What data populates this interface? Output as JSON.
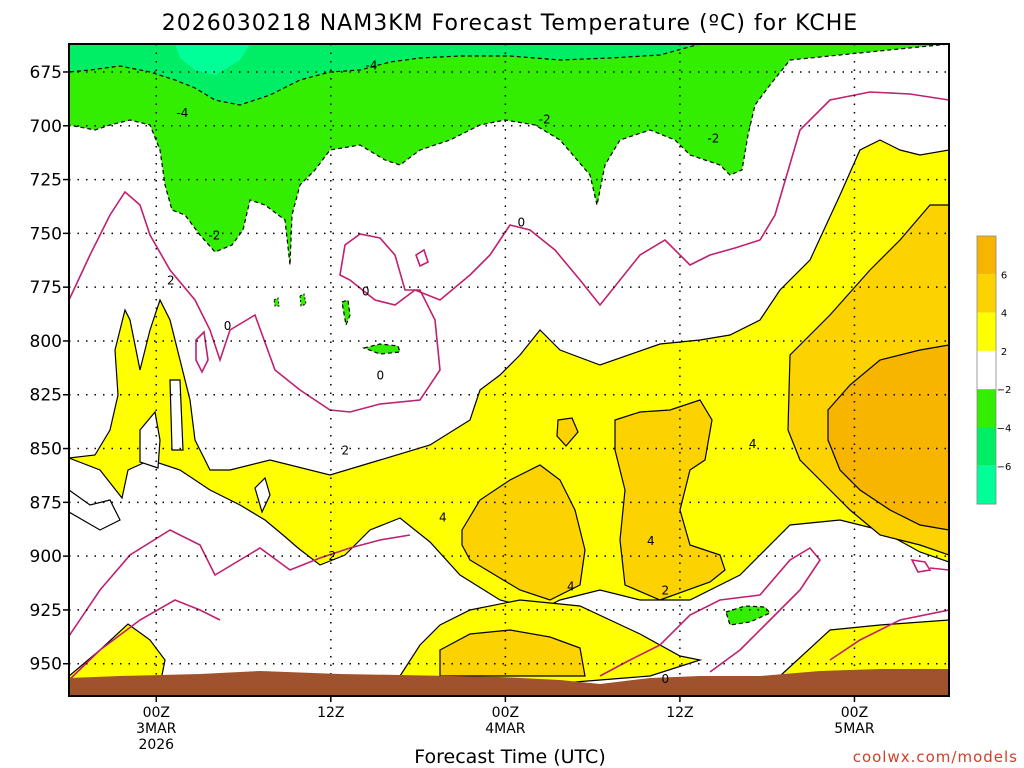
{
  "chart_data": {
    "type": "contour",
    "title": "2026030218 NAM3KM Forecast Temperature (ºC) for KCHE",
    "xlabel": "Forecast Time (UTC)",
    "ylabel": "",
    "y_scale": "pressure (hPa), increasing downward",
    "ylim": [
      662,
      965
    ],
    "y_ticks": [
      675,
      700,
      725,
      750,
      775,
      800,
      825,
      850,
      875,
      900,
      925,
      950
    ],
    "x_ticks": [
      {
        "hour": 0,
        "label": [
          "00Z",
          "3MAR",
          "2026"
        ]
      },
      {
        "hour": 12,
        "label": [
          "12Z"
        ]
      },
      {
        "hour": 24,
        "label": [
          "00Z",
          "4MAR"
        ]
      },
      {
        "hour": 36,
        "label": [
          "12Z"
        ]
      },
      {
        "hour": 48,
        "label": [
          "00Z",
          "5MAR"
        ]
      }
    ],
    "xlim": [
      -6,
      54.5
    ],
    "grid": true,
    "colorbar": {
      "labels": [
        "6",
        "4",
        "2",
        "−2",
        "−4",
        "−6"
      ],
      "bins": [
        {
          "range": [
            6,
            8
          ],
          "color": "#f7b500"
        },
        {
          "range": [
            4,
            6
          ],
          "color": "#fcd200"
        },
        {
          "range": [
            2,
            4
          ],
          "color": "#ffff00"
        },
        {
          "range": [
            -2,
            2
          ],
          "color": "#ffffff"
        },
        {
          "range": [
            -4,
            -2
          ],
          "color": "#33ee00"
        },
        {
          "range": [
            -6,
            -4
          ],
          "color": "#00ee66"
        },
        {
          "range": [
            -8,
            -6
          ],
          "color": "#00ff99"
        }
      ]
    },
    "contour_labels": [
      {
        "text": "-4",
        "hour": 1.8,
        "p": 694
      },
      {
        "text": "-4",
        "hour": 14.8,
        "p": 672
      },
      {
        "text": "-2",
        "hour": 26.7,
        "p": 697
      },
      {
        "text": "-2",
        "hour": 38.3,
        "p": 706
      },
      {
        "text": "-2",
        "hour": 4.0,
        "p": 751
      },
      {
        "text": "0",
        "hour": 25.1,
        "p": 745
      },
      {
        "text": "2",
        "hour": 1.0,
        "p": 772
      },
      {
        "text": "0",
        "hour": 14.4,
        "p": 777
      },
      {
        "text": "0",
        "hour": 4.9,
        "p": 793
      },
      {
        "text": "0",
        "hour": 15.4,
        "p": 816
      },
      {
        "text": "2",
        "hour": 13.0,
        "p": 851
      },
      {
        "text": "4",
        "hour": 41.0,
        "p": 848
      },
      {
        "text": "4",
        "hour": 19.7,
        "p": 882
      },
      {
        "text": "4",
        "hour": 34.0,
        "p": 893
      },
      {
        "text": "2",
        "hour": 12.1,
        "p": 900
      },
      {
        "text": "4",
        "hour": 28.5,
        "p": 914
      },
      {
        "text": "2",
        "hour": 35.0,
        "p": 916
      },
      {
        "text": "0",
        "hour": 35.0,
        "p": 957
      }
    ],
    "terrain_color": "#a0522d",
    "surface_pressure_approx": 962
  },
  "credit": "coolwx.com/models"
}
